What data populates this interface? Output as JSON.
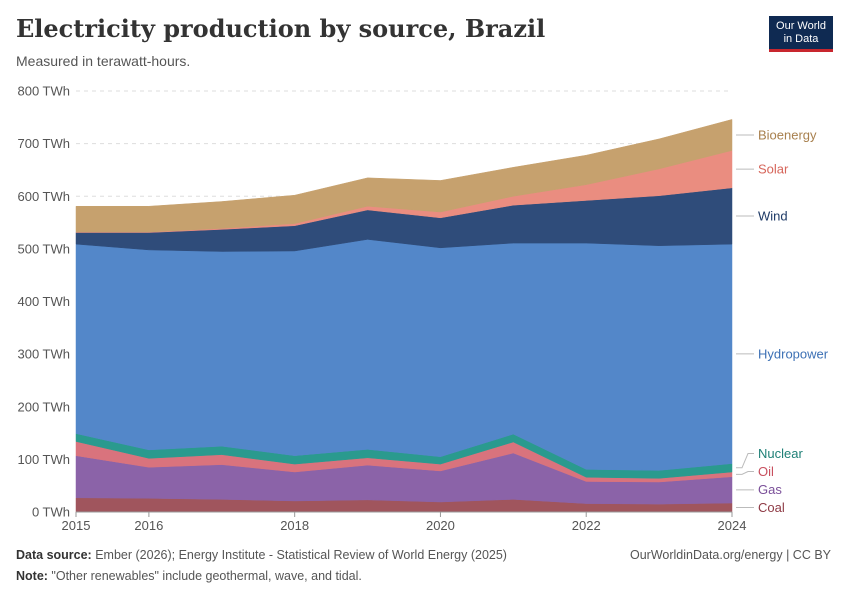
{
  "header": {
    "title": "Electricity production by source, Brazil",
    "subtitle": "Measured in terawatt-hours."
  },
  "logo": {
    "line1": "Our World",
    "line2": "in Data"
  },
  "footer": {
    "source_label": "Data source:",
    "source_text": " Ember (2026); Energy Institute - Statistical Review of World Energy (2025)",
    "url": "OurWorldinData.org/energy | CC BY",
    "note_label": "Note:",
    "note_text": " \"Other renewables\" include geothermal, wave, and tidal."
  },
  "chart_data": {
    "type": "area",
    "stacked": true,
    "title": "Electricity production by source, Brazil",
    "subtitle": "Measured in terawatt-hours.",
    "x": [
      2015,
      2016,
      2017,
      2018,
      2019,
      2020,
      2021,
      2022,
      2023,
      2024
    ],
    "xticks": [
      2015,
      2016,
      2018,
      2020,
      2022,
      2024
    ],
    "xlim": [
      2015,
      2024
    ],
    "ylim": [
      0,
      800
    ],
    "yticks": [
      0,
      100,
      200,
      300,
      400,
      500,
      600,
      700,
      800
    ],
    "ytick_labels": [
      "0 TWh",
      "100 TWh",
      "200 TWh",
      "300 TWh",
      "400 TWh",
      "500 TWh",
      "600 TWh",
      "700 TWh",
      "800 TWh"
    ],
    "grid": true,
    "legend": "right",
    "series": [
      {
        "name": "Coal",
        "color": "#a0555d",
        "values": [
          27,
          26,
          24,
          21,
          23,
          19,
          24,
          16,
          15,
          17
        ]
      },
      {
        "name": "Gas",
        "color": "#8b63a8",
        "values": [
          80,
          59,
          66,
          55,
          66,
          59,
          88,
          42,
          42,
          50
        ]
      },
      {
        "name": "Oil",
        "color": "#d9737d",
        "values": [
          27,
          17,
          19,
          15,
          14,
          13,
          21,
          8,
          7,
          9
        ]
      },
      {
        "name": "Nuclear",
        "color": "#2a9a8e",
        "values": [
          15,
          16,
          16,
          16,
          16,
          14,
          15,
          15,
          15,
          16
        ]
      },
      {
        "name": "Hydropower",
        "color": "#5387c9",
        "values": [
          360,
          380,
          370,
          389,
          399,
          397,
          363,
          430,
          427,
          417
        ]
      },
      {
        "name": "Wind",
        "color": "#2f4c7a",
        "values": [
          22,
          33,
          42,
          48,
          56,
          57,
          72,
          81,
          95,
          107
        ]
      },
      {
        "name": "Solar",
        "color": "#ea8d80",
        "values": [
          1,
          1,
          2,
          4,
          7,
          11,
          17,
          30,
          51,
          71
        ]
      },
      {
        "name": "Bioenergy",
        "color": "#c6a16e",
        "values": [
          49,
          49,
          51,
          54,
          54,
          60,
          55,
          56,
          57,
          59
        ]
      }
    ],
    "label_colors": {
      "Coal": "#8e3a45",
      "Gas": "#7a4f99",
      "Oil": "#c84f5e",
      "Nuclear": "#1f8077",
      "Hydropower": "#3d71b5",
      "Wind": "#1e3a66",
      "Solar": "#d6655a",
      "Bioenergy": "#a8804e"
    }
  }
}
